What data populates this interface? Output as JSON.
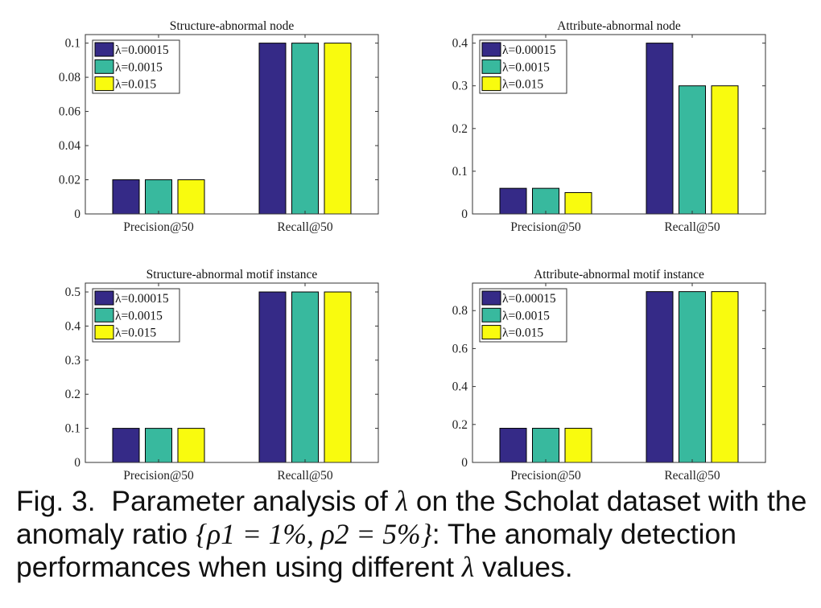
{
  "chart_data": [
    {
      "type": "bar",
      "title": "Structure-abnormal node",
      "categories": [
        "Precision@50",
        "Recall@50"
      ],
      "ylim": [
        0,
        0.105
      ],
      "yticks": [
        "0",
        "0.02",
        "0.04",
        "0.06",
        "0.08",
        "0.1"
      ],
      "ytick_values": [
        0,
        0.02,
        0.04,
        0.06,
        0.08,
        0.1
      ],
      "legend": "top-left",
      "grid": false,
      "series": [
        {
          "name": "λ=0.00015",
          "values": [
            0.02,
            0.1
          ]
        },
        {
          "name": "λ=0.0015",
          "values": [
            0.02,
            0.1
          ]
        },
        {
          "name": "λ=0.015",
          "values": [
            0.02,
            0.1
          ]
        }
      ]
    },
    {
      "type": "bar",
      "title": "Attribute-abnormal node",
      "categories": [
        "Precision@50",
        "Recall@50"
      ],
      "ylim": [
        0,
        0.42
      ],
      "yticks": [
        "0",
        "0.1",
        "0.2",
        "0.3",
        "0.4"
      ],
      "ytick_values": [
        0,
        0.1,
        0.2,
        0.3,
        0.4
      ],
      "legend": "top-left",
      "grid": false,
      "series": [
        {
          "name": "λ=0.00015",
          "values": [
            0.06,
            0.4
          ]
        },
        {
          "name": "λ=0.0015",
          "values": [
            0.06,
            0.3
          ]
        },
        {
          "name": "λ=0.015",
          "values": [
            0.05,
            0.3
          ]
        }
      ]
    },
    {
      "type": "bar",
      "title": "Structure-abnormal motif instance",
      "categories": [
        "Precision@50",
        "Recall@50"
      ],
      "ylim": [
        0,
        0.526
      ],
      "yticks": [
        "0",
        "0.1",
        "0.2",
        "0.3",
        "0.4",
        "0.5"
      ],
      "ytick_values": [
        0,
        0.1,
        0.2,
        0.3,
        0.4,
        0.5
      ],
      "legend": "top-left",
      "grid": false,
      "series": [
        {
          "name": "λ=0.00015",
          "values": [
            0.1,
            0.5
          ]
        },
        {
          "name": "λ=0.0015",
          "values": [
            0.1,
            0.5
          ]
        },
        {
          "name": "λ=0.015",
          "values": [
            0.1,
            0.5
          ]
        }
      ]
    },
    {
      "type": "bar",
      "title": "Attribute-abnormal motif instance",
      "categories": [
        "Precision@50",
        "Recall@50"
      ],
      "ylim": [
        0,
        0.945
      ],
      "yticks": [
        "0",
        "0.2",
        "0.4",
        "0.6",
        "0.8"
      ],
      "ytick_values": [
        0,
        0.2,
        0.4,
        0.6,
        0.8
      ],
      "legend": "top-left",
      "grid": false,
      "series": [
        {
          "name": "λ=0.00015",
          "values": [
            0.18,
            0.9
          ]
        },
        {
          "name": "λ=0.0015",
          "values": [
            0.18,
            0.9
          ]
        },
        {
          "name": "λ=0.015",
          "values": [
            0.18,
            0.9
          ]
        }
      ]
    }
  ],
  "colors": [
    "#352a87",
    "#38b99e",
    "#f9fb0e"
  ],
  "caption": {
    "label": "Fig. 3.",
    "text1": "Parameter analysis of",
    "lambda": "λ",
    "text2": "on the Scholat dataset with the anomaly ratio",
    "math": "{ρ1 = 1%, ρ2 = 5%}",
    "text3": ": The anomaly detection performances when using different",
    "text4": "values."
  }
}
